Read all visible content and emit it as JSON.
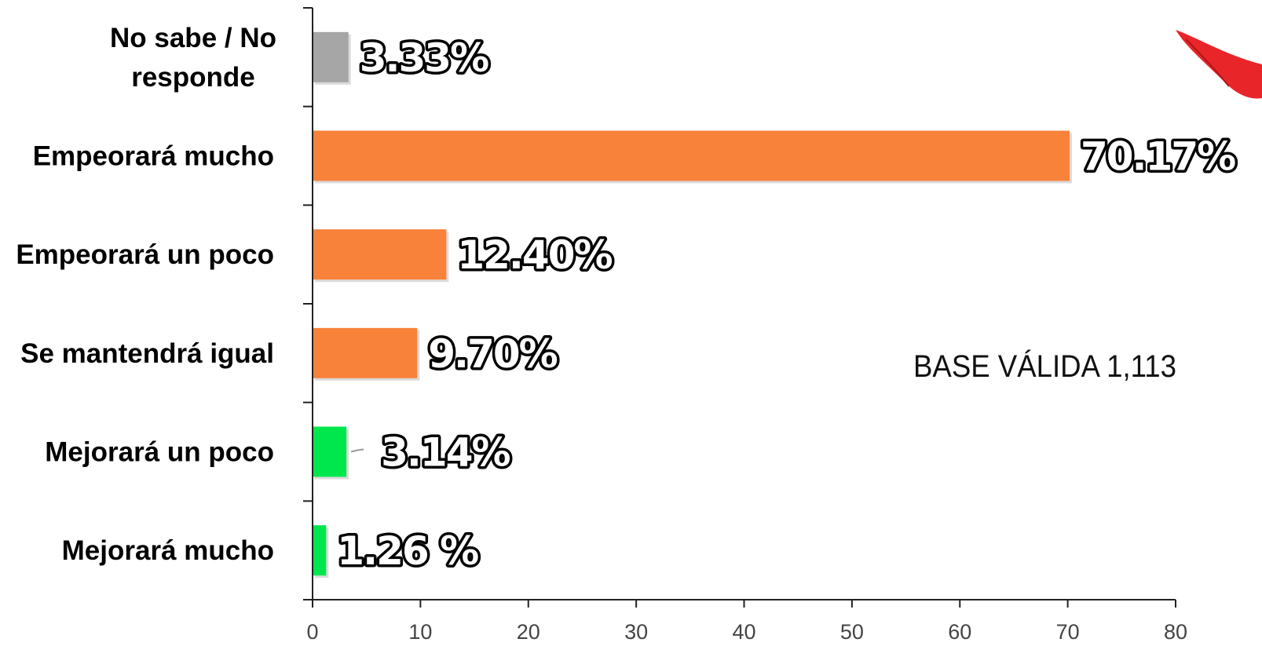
{
  "chart_data": {
    "type": "bar",
    "orientation": "horizontal",
    "categories": [
      "No sabe / No responde",
      "Empeorará mucho",
      "Empeorará un poco",
      "Se mantendrá igual",
      "Mejorará un poco",
      "Mejorará mucho"
    ],
    "category_lines": [
      [
        "No sabe / No",
        "responde"
      ],
      [
        "Empeorará mucho"
      ],
      [
        "Empeorará un poco"
      ],
      [
        "Se mantendrá igual"
      ],
      [
        "Mejorará un poco"
      ],
      [
        "Mejorará mucho"
      ]
    ],
    "values": [
      3.33,
      70.17,
      12.4,
      9.7,
      3.14,
      1.26
    ],
    "data_labels": [
      "3.33%",
      "70.17%",
      "12.40%",
      "9.70%",
      "3.14%",
      "1.26 %"
    ],
    "colors": [
      "#a6a6a6",
      "#f8823a",
      "#f8823a",
      "#f8823a",
      "#00e64d",
      "#00e64d"
    ],
    "xlim": [
      0,
      80
    ],
    "xticks": [
      0,
      10,
      20,
      30,
      40,
      50,
      60,
      70,
      80
    ],
    "grid": false,
    "annotation": "BASE VÁLIDA 1,113"
  }
}
